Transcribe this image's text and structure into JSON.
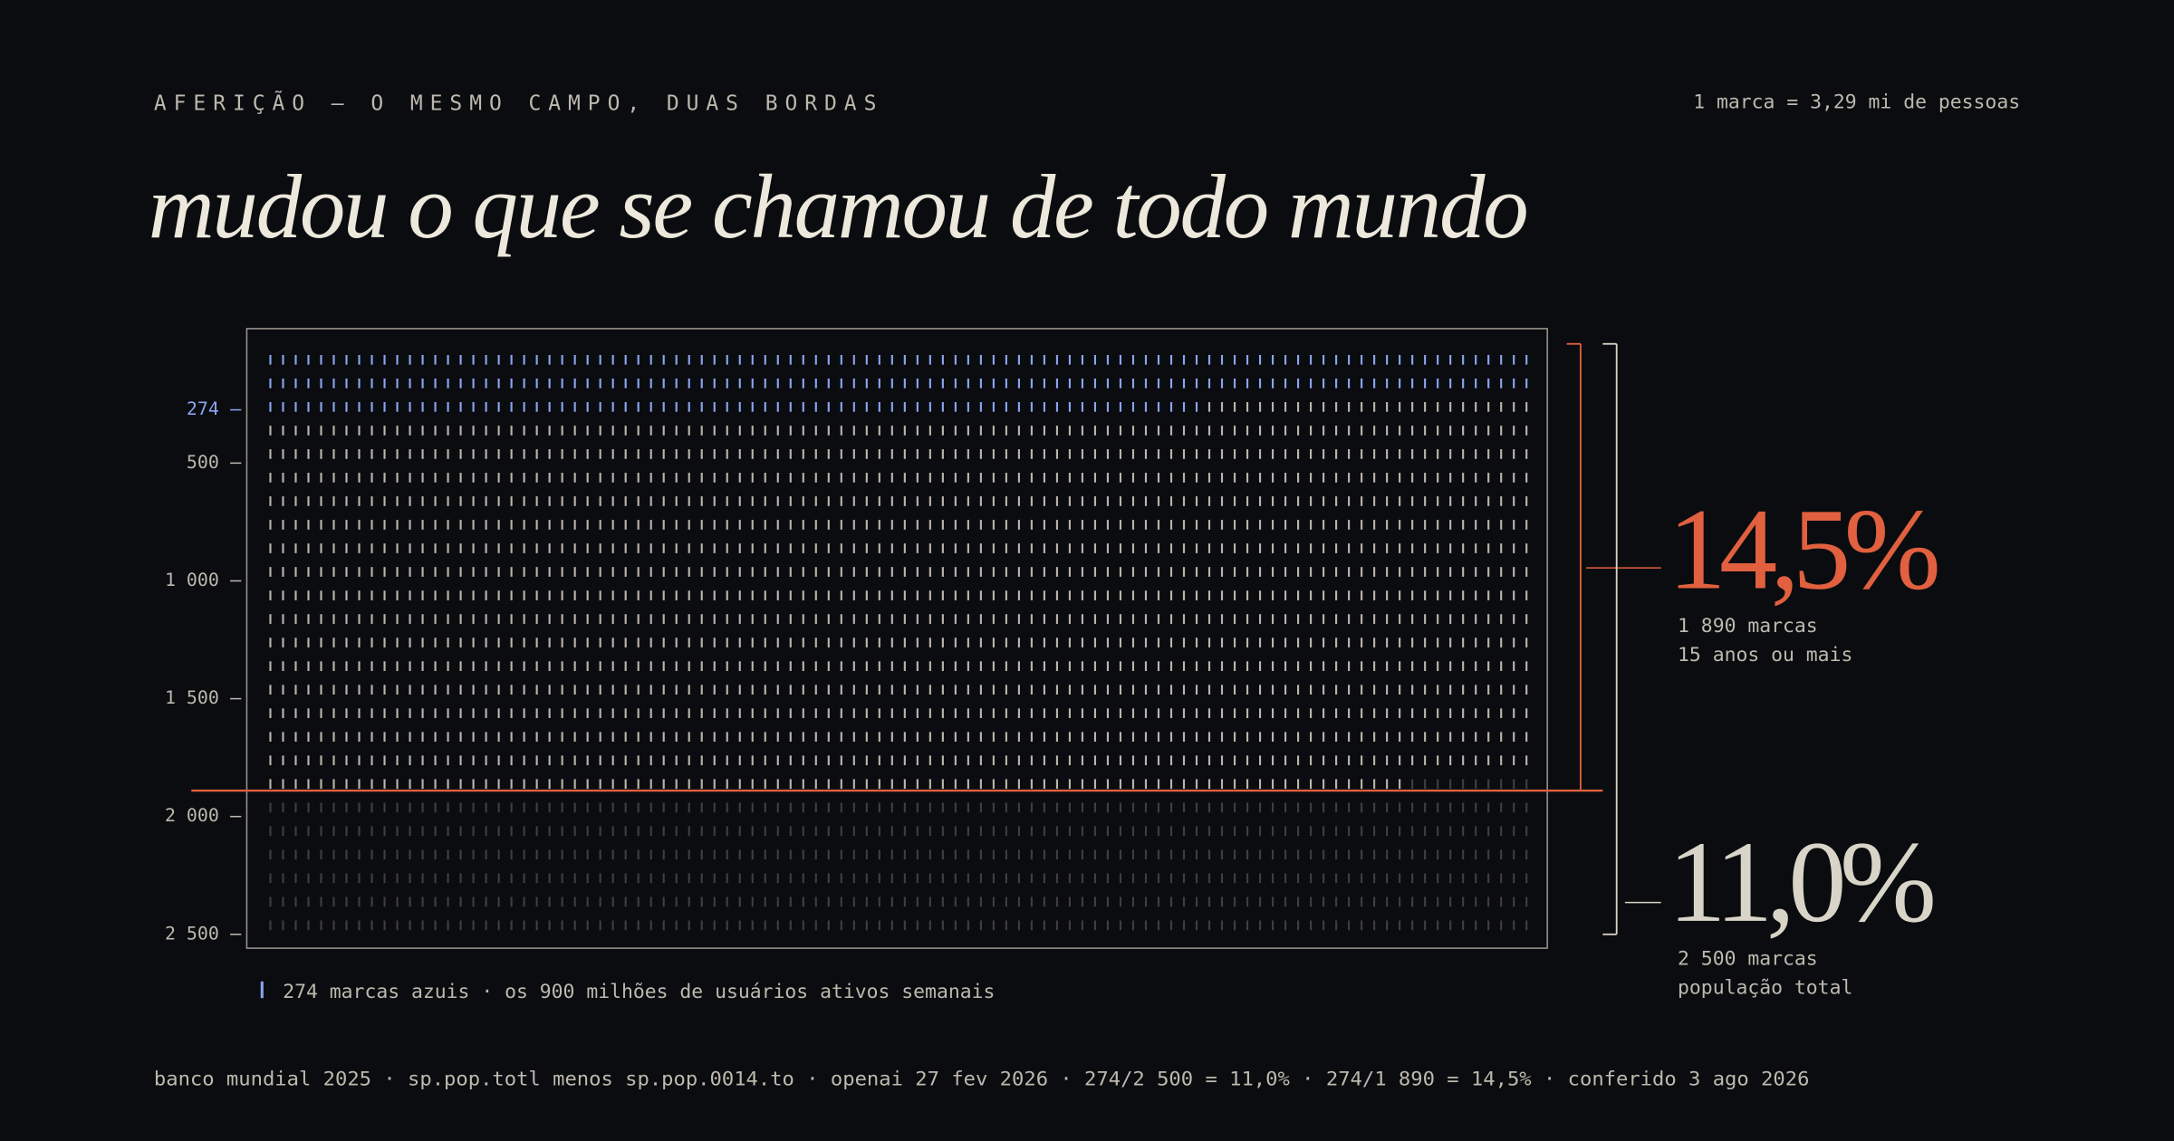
{
  "chart_data": {
    "type": "tally",
    "eyebrow": "AFERIÇÃO — O MESMO CAMPO, DUAS BORDAS",
    "scale_note": "1 marca = 3,29 mi de pessoas",
    "title": "mudou o que se chamou de todo mundo",
    "ylim": [
      0,
      2500
    ],
    "yticks": [
      {
        "value": 274,
        "label": "274"
      },
      500,
      {
        "value": 1000,
        "label": "1 000"
      },
      {
        "value": 1500,
        "label": "1 500"
      },
      {
        "value": 2000,
        "label": "2 000"
      },
      {
        "value": 2500,
        "label": "2 500"
      }
    ],
    "blue": {
      "value": 274,
      "label": "274 marcas azuis · os 900 milhões de usuários ativos semanais",
      "color": "#8aa4f0"
    },
    "edges": [
      {
        "count": {
          "value": 1890,
          "label": "1 890 marcas"
        },
        "share": {
          "value": 14.5,
          "label": "14,5%"
        },
        "note": "15 anos ou mais",
        "color": "#e0603f",
        "mark_color": "#b9b5ab"
      },
      {
        "count": {
          "value": 2500,
          "label": "2 500 marcas"
        },
        "share": {
          "value": 11.0,
          "label": "11,0%"
        },
        "note": "população total",
        "color": "#d8d4c8",
        "mark_color": "#3e3e42"
      }
    ],
    "footer": "banco mundial 2025 · sp.pop.totl menos sp.pop.0014.to · openai 27 fev 2026 · 274/2 500 = 11,0% · 274/1 890 = 14,5% · conferido 3 ago 2026"
  }
}
